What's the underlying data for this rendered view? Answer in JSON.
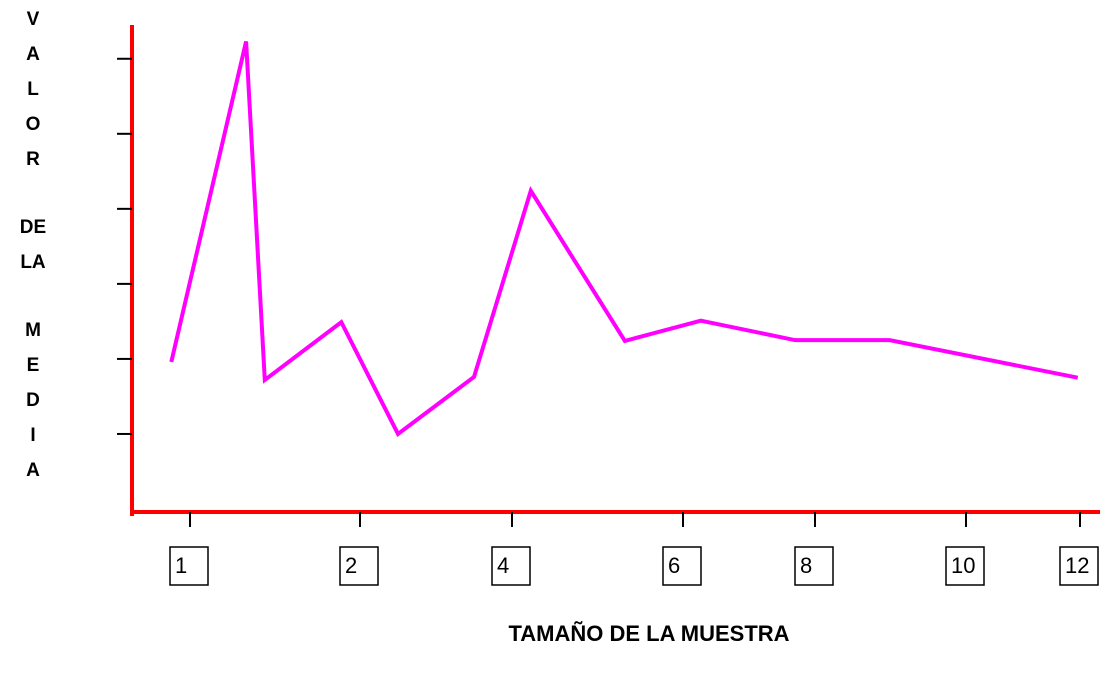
{
  "chart_data": {
    "type": "line",
    "x_label": "TAMAÑO DE LA MUESTRA",
    "y_label_lines": [
      "V",
      "A",
      "L",
      "O",
      "R",
      "DE",
      "LA",
      "M",
      "E",
      "D",
      "I",
      "A"
    ],
    "xticks": [
      1,
      2,
      4,
      6,
      8,
      10,
      12
    ],
    "ylim": [
      0,
      6.45
    ],
    "yticks": [
      1,
      2,
      3,
      4,
      5,
      6
    ],
    "series": [
      {
        "color": "#ff00ff",
        "x": [
          0.89,
          1.33,
          1.44,
          1.89,
          2.5,
          3.5,
          4.22,
          5.32,
          6.27,
          7.7,
          8.99,
          11.96
        ],
        "values": [
          1.96,
          6.23,
          1.72,
          2.49,
          1.0,
          1.76,
          4.24,
          2.24,
          2.51,
          2.25,
          2.25,
          1.75
        ]
      }
    ]
  }
}
